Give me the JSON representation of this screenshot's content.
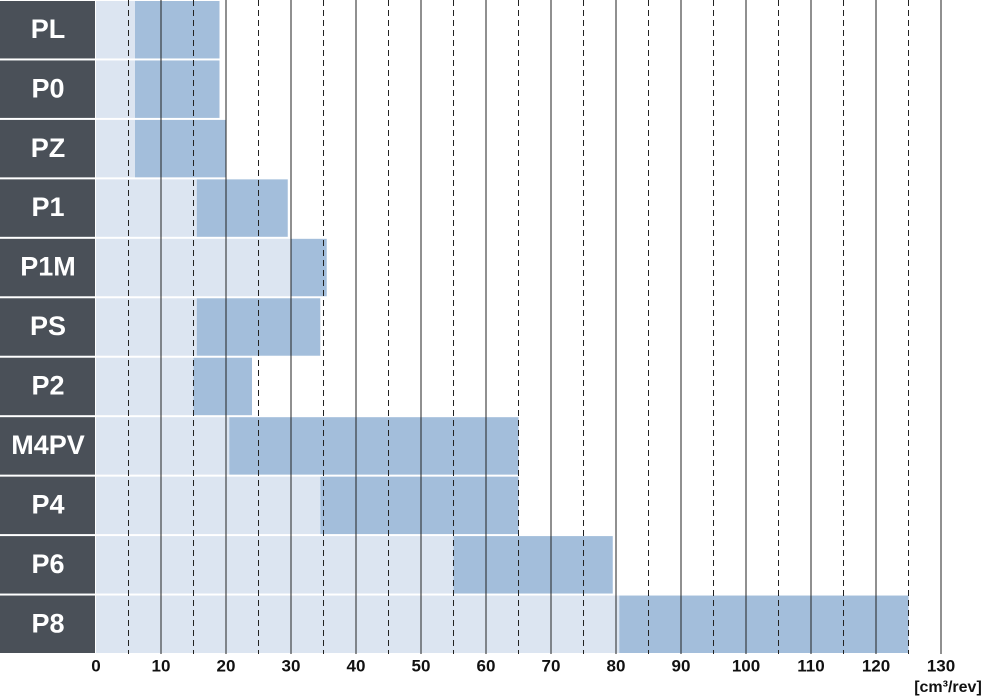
{
  "chart_data": {
    "type": "range-bar",
    "xlabel": "[cm³/rev]",
    "categories": [
      "PL",
      "P0",
      "PZ",
      "P1",
      "P1M",
      "PS",
      "P2",
      "M4PV",
      "P4",
      "P6",
      "P8"
    ],
    "starts": [
      6,
      6,
      6,
      15.5,
      30,
      15.5,
      15,
      20.5,
      34.5,
      55,
      80.5
    ],
    "ends": [
      19,
      19,
      20,
      29.5,
      35.5,
      34.5,
      24,
      65,
      65,
      79.5,
      125
    ],
    "color": "#a3bedb",
    "lead_color": "#dce5f1",
    "label_bg": "#4a5058",
    "xlim": [
      0,
      130
    ],
    "xticks": [
      0,
      10,
      20,
      30,
      40,
      50,
      60,
      70,
      80,
      90,
      100,
      110,
      120,
      130
    ],
    "minor_xticks": [
      5,
      15,
      25,
      35,
      45,
      55,
      65,
      75,
      85,
      95,
      105,
      115,
      125
    ],
    "grid": true
  }
}
